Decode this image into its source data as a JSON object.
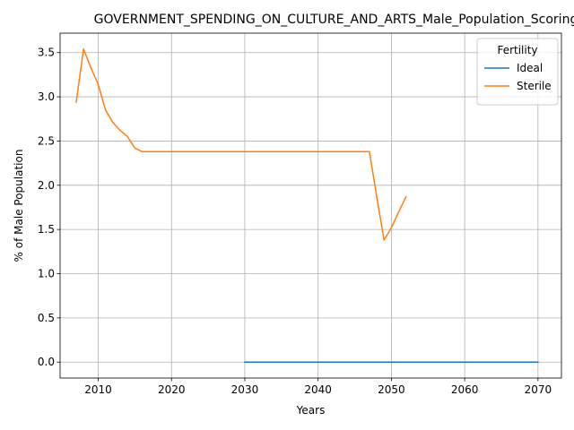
{
  "chart_data": {
    "type": "line",
    "title": "GOVERNMENT_SPENDING_ON_CULTURE_AND_ARTS_Male_Population_Scoring",
    "xlabel": "Years",
    "ylabel": "% of Male Population",
    "xlim": [
      2004.8,
      2073.2
    ],
    "ylim": [
      -0.18,
      3.72
    ],
    "x_ticks": [
      2010,
      2020,
      2030,
      2040,
      2050,
      2060,
      2070
    ],
    "x_tick_labels": [
      "2010",
      "2020",
      "2030",
      "2040",
      "2050",
      "2060",
      "2070"
    ],
    "y_ticks": [
      0.0,
      0.5,
      1.0,
      1.5,
      2.0,
      2.5,
      3.0,
      3.5
    ],
    "y_tick_labels": [
      "0.0",
      "0.5",
      "1.0",
      "1.5",
      "2.0",
      "2.5",
      "3.0",
      "3.5"
    ],
    "grid": true,
    "legend": {
      "title": "Fertility",
      "position": "top-right"
    },
    "series": [
      {
        "name": "Ideal",
        "color": "#1f77b4",
        "x": [
          2030,
          2035,
          2040,
          2045,
          2050,
          2055,
          2060,
          2065,
          2070
        ],
        "y": [
          0,
          0,
          0,
          0,
          0,
          0,
          0,
          0,
          0
        ]
      },
      {
        "name": "Sterile",
        "color": "#ff7f0e",
        "x": [
          2007,
          2008,
          2009,
          2010,
          2011,
          2012,
          2013,
          2014,
          2015,
          2016,
          2017,
          2020,
          2025,
          2030,
          2035,
          2040,
          2045,
          2047,
          2048,
          2049,
          2050,
          2051,
          2052
        ],
        "y": [
          2.94,
          3.54,
          3.33,
          3.14,
          2.85,
          2.71,
          2.62,
          2.55,
          2.42,
          2.38,
          2.38,
          2.38,
          2.38,
          2.38,
          2.38,
          2.38,
          2.38,
          2.38,
          1.87,
          1.38,
          1.52,
          1.7,
          1.87
        ]
      }
    ]
  }
}
